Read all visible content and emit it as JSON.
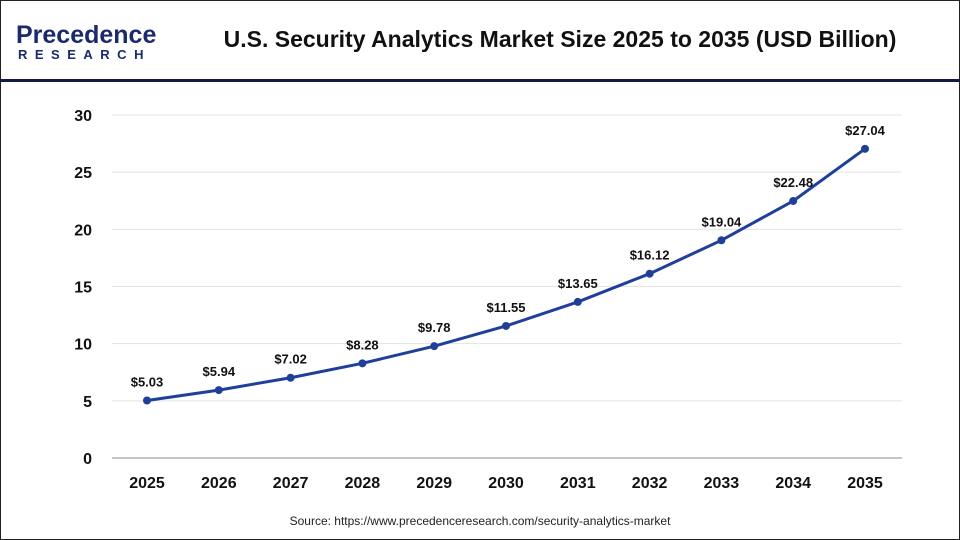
{
  "logo": {
    "line1": "Precedence",
    "line2": "RESEARCH"
  },
  "title": "U.S. Security Analytics Market Size 2025 to 2035 (USD Billion)",
  "source": "Source: https://www.precedenceresearch.com/security-analytics-market",
  "chart_data": {
    "type": "line",
    "title": "U.S. Security Analytics Market Size 2025 to 2035 (USD Billion)",
    "categories": [
      "2025",
      "2026",
      "2027",
      "2028",
      "2029",
      "2030",
      "2031",
      "2032",
      "2033",
      "2034",
      "2035"
    ],
    "values": [
      5.03,
      5.94,
      7.02,
      8.28,
      9.78,
      11.55,
      13.65,
      16.12,
      19.04,
      22.48,
      27.04
    ],
    "data_labels": [
      "$5.03",
      "$5.94",
      "$7.02",
      "$8.28",
      "$9.78",
      "$11.55",
      "$13.65",
      "$16.12",
      "$19.04",
      "$22.48",
      "$27.04"
    ],
    "yticks": [
      "0",
      "5",
      "10",
      "15",
      "20",
      "25",
      "30"
    ],
    "ylim": [
      0,
      30
    ],
    "grid": true,
    "line_color": "#1f3f9a"
  }
}
